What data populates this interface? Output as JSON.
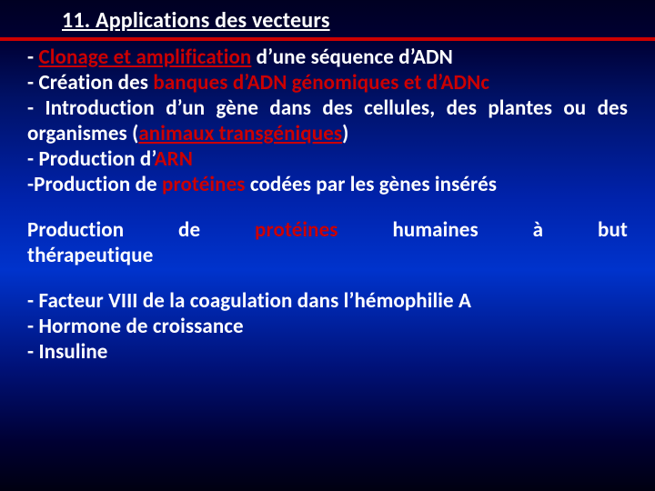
{
  "colors": {
    "title": "#ffffff",
    "divider": "#cc0000",
    "bodyText": "#ffffff",
    "highlight1": "#cc0000",
    "highlight2": "#cc0000",
    "highlight3": "#cc0000",
    "highlight4": "#cc0000",
    "highlight5": "#cc0000",
    "highlight6": "#cc0000"
  },
  "title": "11. Applications des vecteurs",
  "l1a": "- ",
  "l1b": "Clonage et amplification",
  "l1c": " d’une séquence d’ADN",
  "l2a": "- Création des ",
  "l2b": "banques d’ADN génomiques et d’ADNc",
  "l3": "- Introduction d’un gène dans des cellules, des plantes ou des organismes (",
  "l3b": "animaux transgéniques",
  "l3c": ")",
  "l4a": "- Production d’",
  "l4b": "ARN",
  "l5a": "-Production de ",
  "l5b": "protéines",
  "l5c": " codées par les gènes insérés",
  "p2w1": "Production",
  "p2w2": "de",
  "p2w3": "protéines",
  "p2w4": "humaines",
  "p2w5": "à",
  "p2w6": "but",
  "p2l2": "thérapeutique",
  "p3l1": "- Facteur VIII de la coagulation dans l’hémophilie A",
  "p3l2": "- Hormone de croissance",
  "p3l3": "- Insuline"
}
